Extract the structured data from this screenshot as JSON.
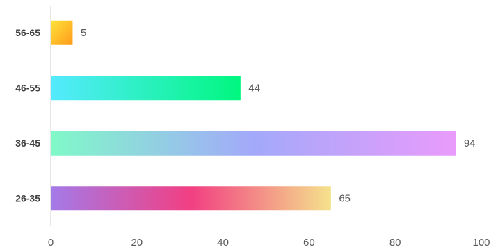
{
  "chart_data": {
    "type": "barh",
    "categories": [
      "26-35",
      "36-45",
      "46-55",
      "56-65"
    ],
    "values": [
      65,
      94,
      44,
      5
    ],
    "colors": [
      [
        "#a47ae8",
        "#f23f82",
        "#f5e28c"
      ],
      [
        "#80f9c8",
        "#a3a9fa",
        "#e99bfb"
      ],
      [
        "#55eaff",
        "#00f77f"
      ],
      [
        "#ffe23a",
        "#ff9a1a"
      ]
    ],
    "xlim": [
      0,
      100
    ],
    "xticks": [
      0,
      20,
      40,
      60,
      80,
      100
    ],
    "grid": false
  }
}
